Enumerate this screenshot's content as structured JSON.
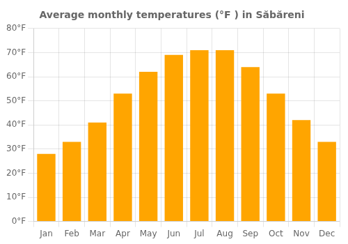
{
  "chart_data": {
    "type": "bar",
    "title": "Average monthly temperatures (°F ) in Săbăreni",
    "categories": [
      "Jan",
      "Feb",
      "Mar",
      "Apr",
      "May",
      "Jun",
      "Jul",
      "Aug",
      "Sep",
      "Oct",
      "Nov",
      "Dec"
    ],
    "values": [
      28,
      33,
      41,
      53,
      62,
      69,
      71,
      71,
      64,
      53,
      42,
      33
    ],
    "color": "#FFA500",
    "ylim": [
      0,
      80
    ],
    "yticks": [
      {
        "value": 0,
        "label": "0°F"
      },
      {
        "value": 10,
        "label": "10°F"
      },
      {
        "value": 20,
        "label": "20°F"
      },
      {
        "value": 30,
        "label": "30°F"
      },
      {
        "value": 40,
        "label": "40°F"
      },
      {
        "value": 50,
        "label": "50°F"
      },
      {
        "value": 60,
        "label": "60°F"
      },
      {
        "value": 70,
        "label": "70°F"
      },
      {
        "value": 80,
        "label": "80°F"
      }
    ],
    "grid": true
  }
}
